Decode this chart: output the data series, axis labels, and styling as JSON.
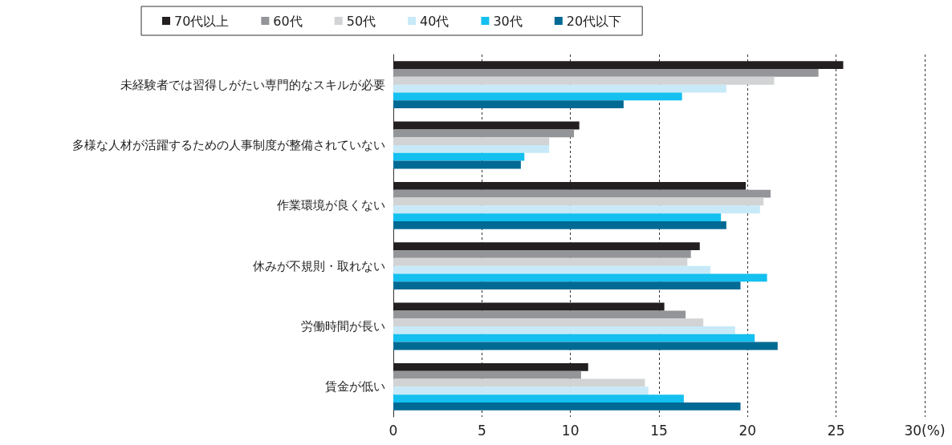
{
  "chart_data": {
    "type": "bar",
    "orientation": "horizontal",
    "categories": [
      "未経験者では習得しがたい専門的なスキルが必要",
      "多様な人材が活躍するための人事制度が整備されていない",
      "作業環境が良くない",
      "休みが不規則・取れない",
      "労働時間が長い",
      "賃金が低い"
    ],
    "series": [
      {
        "name": "70代以上",
        "color": "#231f20",
        "values": [
          25.4,
          10.5,
          19.9,
          17.3,
          15.3,
          11.0
        ]
      },
      {
        "name": "60代",
        "color": "#939598",
        "values": [
          24.0,
          10.2,
          21.3,
          16.8,
          16.5,
          10.6
        ]
      },
      {
        "name": "50代",
        "color": "#d1d3d4",
        "values": [
          21.5,
          8.8,
          20.9,
          16.6,
          17.5,
          14.2
        ]
      },
      {
        "name": "40代",
        "color": "#c7e9f8",
        "values": [
          18.8,
          8.8,
          20.7,
          17.9,
          19.3,
          14.4
        ]
      },
      {
        "name": "30代",
        "color": "#13c0f0",
        "values": [
          16.3,
          7.4,
          18.5,
          21.1,
          20.4,
          16.4
        ]
      },
      {
        "name": "20代以下",
        "color": "#006994",
        "values": [
          13.0,
          7.2,
          18.8,
          19.6,
          21.7,
          19.6
        ]
      }
    ],
    "xlim": [
      0,
      30
    ],
    "xticks": [
      0,
      5,
      10,
      15,
      20,
      25,
      {
        "value": 30,
        "label": "30(%)"
      }
    ],
    "grid": "x",
    "legend": "top"
  }
}
